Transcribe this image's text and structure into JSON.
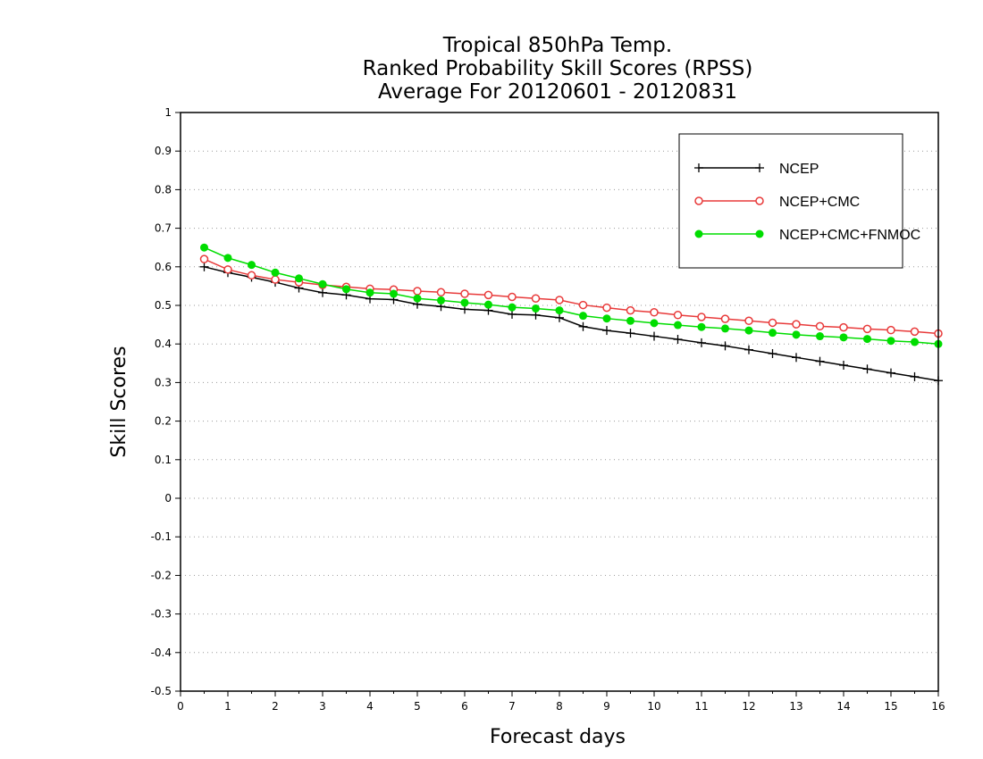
{
  "chart_data": {
    "type": "line",
    "title": [
      "Tropical 850hPa Temp.",
      "Ranked Probability Skill Scores (RPSS)",
      "Average For 20120601 - 20120831"
    ],
    "xlabel": "Forecast days",
    "ylabel": "Skill Scores",
    "xlim": [
      0,
      16
    ],
    "ylim": [
      -0.5,
      1
    ],
    "xticks": [
      "0",
      "1",
      "2",
      "3",
      "4",
      "5",
      "6",
      "7",
      "8",
      "9",
      "10",
      "11",
      "12",
      "13",
      "14",
      "15",
      "16"
    ],
    "yticks": [
      "-0.5",
      "-0.4",
      "-0.3",
      "-0.2",
      "-0.1",
      "0",
      "0.1",
      "0.2",
      "0.3",
      "0.4",
      "0.5",
      "0.6",
      "0.7",
      "0.8",
      "0.9",
      "1"
    ],
    "grid": "horizontal dotted",
    "legend_position": "top-right",
    "x": [
      0.5,
      1,
      1.5,
      2,
      2.5,
      3,
      3.5,
      4,
      4.5,
      5,
      5.5,
      6,
      6.5,
      7,
      7.5,
      8,
      8.5,
      9,
      9.5,
      10,
      10.5,
      11,
      11.5,
      12,
      12.5,
      13,
      13.5,
      14,
      14.5,
      15,
      15.5,
      16
    ],
    "series": [
      {
        "name": "NCEP",
        "color": "#000000",
        "marker": "plus",
        "values": [
          0.6,
          0.585,
          0.573,
          0.56,
          0.545,
          0.533,
          0.527,
          0.517,
          0.515,
          0.503,
          0.497,
          0.49,
          0.487,
          0.477,
          0.475,
          0.468,
          0.445,
          0.435,
          0.428,
          0.42,
          0.412,
          0.403,
          0.395,
          0.385,
          0.375,
          0.365,
          0.355,
          0.345,
          0.335,
          0.325,
          0.315,
          0.305
        ]
      },
      {
        "name": "NCEP+CMC",
        "color": "#e83a3a",
        "marker": "open-circle",
        "values": [
          0.62,
          0.593,
          0.578,
          0.567,
          0.56,
          0.553,
          0.548,
          0.543,
          0.541,
          0.537,
          0.534,
          0.53,
          0.527,
          0.522,
          0.518,
          0.514,
          0.501,
          0.494,
          0.487,
          0.482,
          0.475,
          0.47,
          0.465,
          0.46,
          0.455,
          0.451,
          0.446,
          0.443,
          0.439,
          0.436,
          0.432,
          0.427
        ]
      },
      {
        "name": "NCEP+CMC+FNMOC",
        "color": "#00dd00",
        "marker": "filled-circle",
        "values": [
          0.65,
          0.623,
          0.605,
          0.585,
          0.57,
          0.555,
          0.542,
          0.533,
          0.53,
          0.518,
          0.513,
          0.507,
          0.502,
          0.495,
          0.492,
          0.487,
          0.473,
          0.466,
          0.46,
          0.454,
          0.449,
          0.444,
          0.44,
          0.435,
          0.429,
          0.424,
          0.42,
          0.417,
          0.413,
          0.408,
          0.405,
          0.4
        ]
      }
    ]
  }
}
